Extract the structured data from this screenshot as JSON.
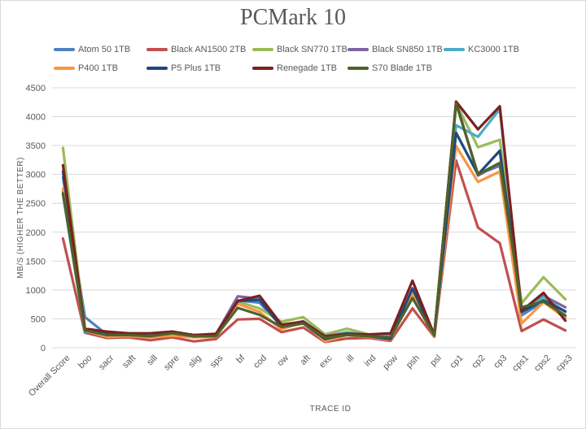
{
  "chart_data": {
    "type": "line",
    "title": "PCMark 10",
    "xlabel": "TRACE ID",
    "ylabel": "MB/S (HIGHER THE BETTER)",
    "ylim": [
      0,
      4500
    ],
    "yticks": [
      0,
      500,
      1000,
      1500,
      2000,
      2500,
      3000,
      3500,
      4000,
      4500
    ],
    "grid": true,
    "legend_position": "top",
    "categories": [
      "Overall Score",
      "boo",
      "sacr",
      "saft",
      "sill",
      "spre",
      "slig",
      "sps",
      "bf",
      "cod",
      "ow",
      "aft",
      "exc",
      "ill",
      "ind",
      "pow",
      "psh",
      "psl",
      "cp1",
      "cp2",
      "cp3",
      "cps1",
      "cps2",
      "cps3"
    ],
    "series": [
      {
        "name": "Atom 50 1TB",
        "color": "#4f81bd",
        "values": [
          2950,
          530,
          230,
          200,
          190,
          230,
          180,
          200,
          820,
          780,
          380,
          420,
          140,
          260,
          200,
          130,
          1010,
          190,
          4240,
          3000,
          3150,
          560,
          800,
          540
        ]
      },
      {
        "name": "Black AN1500 2TB",
        "color": "#c0504d",
        "values": [
          1890,
          260,
          170,
          180,
          130,
          180,
          110,
          150,
          490,
          500,
          270,
          350,
          100,
          160,
          170,
          120,
          680,
          190,
          3240,
          2080,
          1810,
          290,
          490,
          300
        ]
      },
      {
        "name": "Black SN770 1TB",
        "color": "#9bbb59",
        "values": [
          3460,
          330,
          220,
          230,
          210,
          240,
          200,
          190,
          800,
          680,
          450,
          530,
          230,
          330,
          230,
          190,
          940,
          250,
          4230,
          3470,
          3600,
          770,
          1220,
          840
        ]
      },
      {
        "name": "Black SN850 1TB",
        "color": "#8064a2",
        "values": [
          2700,
          280,
          210,
          220,
          220,
          260,
          220,
          230,
          890,
          850,
          380,
          460,
          190,
          260,
          210,
          230,
          960,
          210,
          4260,
          2980,
          3190,
          620,
          900,
          700
        ]
      },
      {
        "name": "KC3000 1TB",
        "color": "#4bacc6",
        "values": [
          2650,
          280,
          230,
          230,
          220,
          260,
          220,
          230,
          800,
          840,
          400,
          440,
          200,
          270,
          220,
          200,
          1010,
          240,
          3850,
          3650,
          4130,
          620,
          880,
          620
        ]
      },
      {
        "name": "P400 1TB",
        "color": "#f79646",
        "values": [
          2750,
          300,
          190,
          200,
          180,
          210,
          180,
          190,
          760,
          620,
          320,
          440,
          110,
          220,
          190,
          140,
          950,
          190,
          3490,
          2870,
          3050,
          420,
          790,
          510
        ]
      },
      {
        "name": "P5 Plus 1TB",
        "color": "#1f497d",
        "values": [
          3050,
          330,
          240,
          230,
          200,
          260,
          200,
          220,
          810,
          830,
          360,
          420,
          150,
          230,
          200,
          150,
          1030,
          210,
          3720,
          3000,
          3410,
          620,
          820,
          630
        ]
      },
      {
        "name": "Renegade 1TB",
        "color": "#7b2020",
        "values": [
          3160,
          330,
          280,
          250,
          250,
          280,
          220,
          240,
          810,
          900,
          400,
          450,
          200,
          240,
          230,
          250,
          1160,
          220,
          4260,
          3780,
          4180,
          640,
          950,
          470
        ]
      },
      {
        "name": "S70 Blade 1TB",
        "color": "#4f6228",
        "values": [
          2670,
          300,
          220,
          220,
          200,
          250,
          200,
          200,
          690,
          570,
          360,
          420,
          170,
          220,
          200,
          180,
          860,
          220,
          4230,
          3000,
          3200,
          700,
          800,
          560
        ]
      }
    ]
  }
}
